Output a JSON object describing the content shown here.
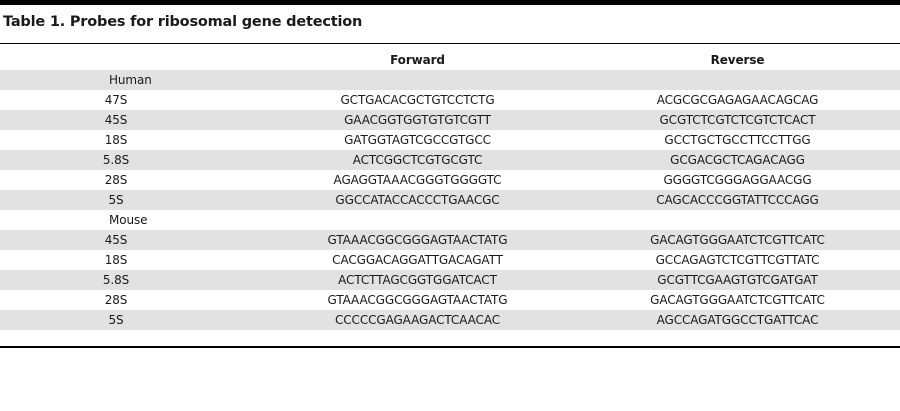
{
  "title": "Table 1. Probes for ribosomal gene detection",
  "columns": {
    "forward": "Forward",
    "reverse": "Reverse"
  },
  "groups": {
    "human": "Human",
    "mouse": "Mouse"
  },
  "human_rows": [
    {
      "label": "47S",
      "forward": "GCTGACACGCTGTCCTCTG",
      "reverse": "ACGCGCGAGAGAACAGCAG"
    },
    {
      "label": "45S",
      "forward": "GAACGGTGGTGTGTCGTT",
      "reverse": "GCGTCTCGTCTCGTCTCACT"
    },
    {
      "label": "18S",
      "forward": "GATGGTAGTCGCCGTGCC",
      "reverse": "GCCTGCTGCCTTCCTTGG"
    },
    {
      "label": "5.8S",
      "forward": "ACTCGGCTCGTGCGTC",
      "reverse": "GCGACGCTCAGACAGG"
    },
    {
      "label": "28S",
      "forward": "AGAGGTAAACGGGTGGGGTC",
      "reverse": "GGGGTCGGGAGGAACGG"
    },
    {
      "label": "5S",
      "forward": "GGCCATACCACCCTGAACGC",
      "reverse": "CAGCACCCGGTATTCCCAGG"
    }
  ],
  "mouse_rows": [
    {
      "label": "45S",
      "forward": "GTAAACGGCGGGAGTAACTATG",
      "reverse": "GACAGTGGGAATCTCGTTCATC"
    },
    {
      "label": "18S",
      "forward": "CACGGACAGGATTGACAGATT",
      "reverse": "GCCAGAGTCTCGTTCGTTATC"
    },
    {
      "label": "5.8S",
      "forward": "ACTCTTAGCGGTGGATCACT",
      "reverse": "GCGTTCGAAGTGTCGATGAT"
    },
    {
      "label": "28S",
      "forward": "GTAAACGGCGGGAGTAACTATG",
      "reverse": "GACAGTGGGAATCTCGTTCATC"
    },
    {
      "label": "5S",
      "forward": "CCCCCGAGAAGACTCAACAC",
      "reverse": "AGCCAGATGGCCTGATTCAC"
    }
  ]
}
